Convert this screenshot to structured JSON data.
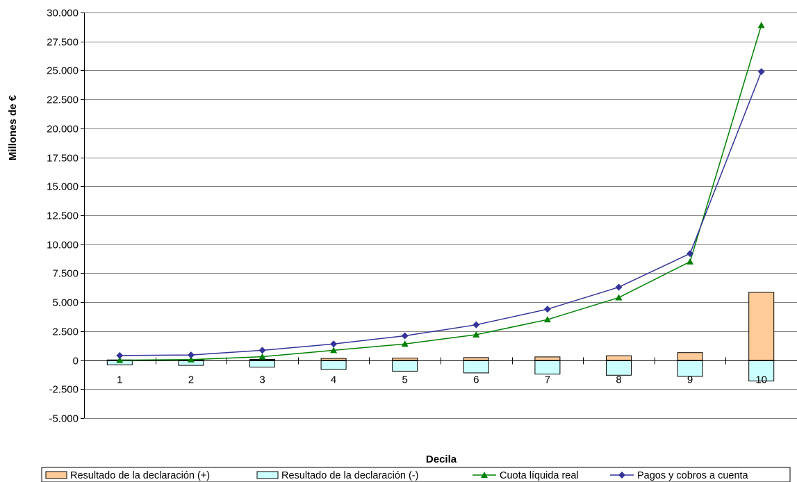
{
  "chart_data": {
    "type": "bar",
    "title": "",
    "xlabel": "Decila",
    "ylabel": "Millones de €",
    "categories": [
      "1",
      "2",
      "3",
      "4",
      "5",
      "6",
      "7",
      "8",
      "9",
      "10"
    ],
    "ylim": [
      -5000,
      30000
    ],
    "yticks": [
      -5000,
      -2500,
      0,
      2500,
      5000,
      7500,
      10000,
      12500,
      15000,
      17500,
      20000,
      22500,
      25000,
      27500,
      30000
    ],
    "ytick_labels": [
      "-5.000",
      "-2.500",
      "0",
      "2.500",
      "5.000",
      "7.500",
      "10.000",
      "12.500",
      "15.000",
      "17.500",
      "20.000",
      "22.500",
      "25.000",
      "27.500",
      "30.000"
    ],
    "grid": true,
    "legend_position": "bottom",
    "series": [
      {
        "name": "Resultado de la declaración (+)",
        "kind": "bar",
        "color": "#FFCC99",
        "values": [
          20,
          30,
          60,
          150,
          180,
          220,
          280,
          380,
          650,
          5850
        ]
      },
      {
        "name": "Resultado de la declaración (-)",
        "kind": "bar",
        "color": "#CCFFFF",
        "values": [
          -400,
          -450,
          -600,
          -800,
          -950,
          -1100,
          -1200,
          -1300,
          -1400,
          -1800
        ]
      },
      {
        "name": "Cuota líquida real",
        "kind": "line",
        "marker": "triangle",
        "color": "#008000",
        "values": [
          0,
          50,
          300,
          850,
          1400,
          2200,
          3500,
          5400,
          8500,
          28900
        ]
      },
      {
        "name": "Pagos y cobros a cuenta",
        "kind": "line",
        "marker": "diamond",
        "color": "#333399",
        "values": [
          400,
          450,
          850,
          1400,
          2100,
          3050,
          4400,
          6300,
          9200,
          24900
        ]
      }
    ]
  }
}
